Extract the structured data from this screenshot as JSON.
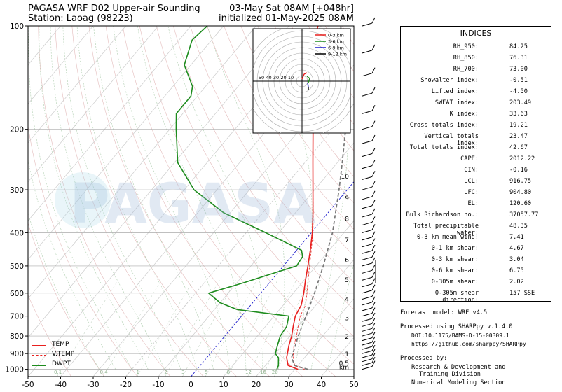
{
  "header": {
    "title_left_1": "PAGASA WRF D02 Upper-air Sounding",
    "title_left_2": "Station: Laoag (98223)",
    "title_right_1": "03-May Sat 08AM [+048hr]",
    "title_right_2": "initialized 01-May-2025 08AM"
  },
  "watermark": "PAGASA",
  "chart_data": {
    "type": "line",
    "xlim": [
      -50,
      50
    ],
    "x_ticks": [
      "-50",
      "-40",
      "-30",
      "-20",
      "-10",
      "0",
      "10",
      "20",
      "30",
      "40",
      "50"
    ],
    "y_axis": "log-pressure",
    "ylim": [
      1050,
      100
    ],
    "y_ticks": [
      "1000",
      "900",
      "800",
      "700",
      "600",
      "500",
      "400",
      "300",
      "200",
      "100"
    ],
    "height_ticks": [
      "0.5",
      "1",
      "2",
      "3",
      "4",
      "5",
      "6",
      "7",
      "8",
      "9",
      "10"
    ],
    "height_unit": "km",
    "legend": [
      {
        "name": "TEMP",
        "color": "#e8201f",
        "dash": "solid"
      },
      {
        "name": "V.TEMP",
        "color": "#e8201f",
        "dash": "dashed"
      },
      {
        "name": "DWPT",
        "color": "#1e8c1e",
        "dash": "solid"
      }
    ],
    "series": [
      {
        "name": "TEMP",
        "points": [
          [
            1000,
            31
          ],
          [
            975,
            27
          ],
          [
            925,
            24.5
          ],
          [
            850,
            22
          ],
          [
            800,
            20.5
          ],
          [
            750,
            18.5
          ],
          [
            700,
            16.5
          ],
          [
            650,
            15.5
          ],
          [
            600,
            13.2
          ],
          [
            550,
            10.4
          ],
          [
            500,
            7.5
          ],
          [
            450,
            4.2
          ],
          [
            400,
            0.3
          ],
          [
            350,
            -4.6
          ],
          [
            300,
            -10.5
          ],
          [
            250,
            -17.5
          ],
          [
            200,
            -26
          ],
          [
            150,
            -38
          ],
          [
            125,
            -46
          ],
          [
            100,
            -51
          ]
        ]
      },
      {
        "name": "V.TEMP",
        "points": [
          [
            1000,
            33
          ],
          [
            975,
            29
          ],
          [
            925,
            26.5
          ],
          [
            850,
            23.5
          ],
          [
            800,
            22
          ],
          [
            750,
            20
          ],
          [
            700,
            18
          ],
          [
            650,
            16.8
          ],
          [
            600,
            14.2
          ],
          [
            550,
            11.2
          ],
          [
            500,
            8
          ],
          [
            450,
            4.5
          ],
          [
            400,
            0.5
          ],
          [
            350,
            -4.5
          ],
          [
            300,
            -10.5
          ],
          [
            250,
            -17.5
          ],
          [
            200,
            -26
          ],
          [
            150,
            -38
          ],
          [
            125,
            -46
          ],
          [
            100,
            -51
          ]
        ]
      },
      {
        "name": "DWPT",
        "points": [
          [
            1000,
            24.5
          ],
          [
            975,
            24
          ],
          [
            925,
            22
          ],
          [
            900,
            20
          ],
          [
            850,
            18.5
          ],
          [
            800,
            17
          ],
          [
            750,
            16.5
          ],
          [
            700,
            14.5
          ],
          [
            670,
            -3
          ],
          [
            640,
            -10
          ],
          [
            600,
            -16
          ],
          [
            560,
            -8
          ],
          [
            500,
            4
          ],
          [
            470,
            3.5
          ],
          [
            450,
            1.5
          ],
          [
            400,
            -14
          ],
          [
            350,
            -32
          ],
          [
            300,
            -47
          ],
          [
            250,
            -59
          ],
          [
            200,
            -68
          ],
          [
            180,
            -72
          ],
          [
            160,
            -72
          ],
          [
            150,
            -74
          ],
          [
            130,
            -82
          ],
          [
            110,
            -86
          ],
          [
            100,
            -85
          ]
        ]
      },
      {
        "name": "PARCEL",
        "points": [
          [
            1000,
            34
          ],
          [
            975,
            29
          ],
          [
            925,
            26
          ],
          [
            850,
            24
          ],
          [
            800,
            22.5
          ],
          [
            700,
            19.8
          ],
          [
            600,
            16.5
          ],
          [
            500,
            12.2
          ],
          [
            400,
            6.5
          ],
          [
            300,
            -2.5
          ],
          [
            250,
            -8.5
          ],
          [
            200,
            -16
          ],
          [
            150,
            -27
          ],
          [
            120,
            -37
          ],
          [
            100,
            -44
          ]
        ]
      }
    ],
    "mixing_ratio_labels": [
      "0.1",
      "0.4",
      "1",
      "2",
      "3",
      "5",
      "8",
      "12",
      "16",
      "20"
    ],
    "hodograph": {
      "rings": [
        10,
        20,
        30,
        40,
        50
      ],
      "ring_labels": [
        "50",
        "40",
        "30",
        "20",
        "10"
      ],
      "legend": [
        {
          "name": "0-3 km",
          "color": "#e8201f"
        },
        {
          "name": "3-6 km",
          "color": "#1e8c1e"
        },
        {
          "name": "6-9 km",
          "color": "#1a1acc"
        },
        {
          "name": "9-12 km",
          "color": "#000000"
        }
      ]
    }
  },
  "indices": {
    "title": "INDICES",
    "rows": [
      {
        "label": "RH_950:",
        "value": "84.25"
      },
      {
        "label": "RH_850:",
        "value": "76.31"
      },
      {
        "label": "RH_700:",
        "value": "73.00"
      },
      {
        "label": "Showalter index:",
        "value": "-0.51"
      },
      {
        "label": "Lifted index:",
        "value": "-4.50"
      },
      {
        "label": "SWEAT index:",
        "value": "203.49"
      },
      {
        "label": "K index:",
        "value": "33.63"
      },
      {
        "label": "Cross totals index:",
        "value": "19.21"
      },
      {
        "label": "Vertical totals index:",
        "value": "23.47"
      },
      {
        "label": "Total totals index:",
        "value": "42.67"
      },
      {
        "label": "CAPE:",
        "value": "2012.22"
      },
      {
        "label": "CIN:",
        "value": "-0.16"
      },
      {
        "label": "LCL:",
        "value": "916.75"
      },
      {
        "label": "LFC:",
        "value": "904.80"
      },
      {
        "label": "EL:",
        "value": "120.60"
      },
      {
        "label": "Bulk Richardson no.:",
        "value": "37057.77"
      },
      {
        "label": "Total precipitable water:",
        "value": "48.35"
      },
      {
        "label": "0-3 km mean wind:",
        "value": "7.41"
      },
      {
        "label": "0-1 km shear:",
        "value": "4.67"
      },
      {
        "label": "0-3 km shear:",
        "value": "3.04"
      },
      {
        "label": "0-6 km shear:",
        "value": "6.75"
      },
      {
        "label": "0-305m shear:",
        "value": "2.02"
      },
      {
        "label": "0-305m shear direction:",
        "value": "157 SSE"
      }
    ]
  },
  "info": {
    "model": "Forecast model: WRF v4.5",
    "processed": "Processed using SHARPpy v.1.4.0",
    "doi": "DOI:10.1175/BAMS-D-15-00309.1",
    "url": "https://github.com/sharppy/SHARPpy",
    "by": "Processed by:",
    "org1": "Research & Development and",
    "org2": "Training Division",
    "org3": "Numerical Modeling Section"
  }
}
